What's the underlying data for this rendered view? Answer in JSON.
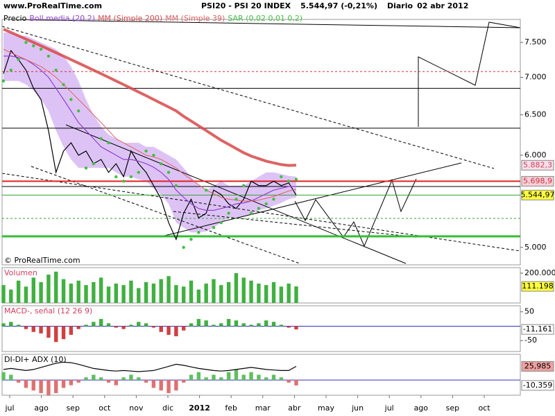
{
  "header": {
    "site": "www.ProRealTime.com",
    "title": "PSI20 - PSI 20 INDEX",
    "quote": "5.544,97 (-0,21%)",
    "period": "Diario",
    "date": "02 abr 2012"
  },
  "footer": {
    "copyright": "© ProRealTime.com"
  },
  "time_axis": {
    "labels": [
      "jul",
      "ago",
      "sep",
      "oct",
      "nov",
      "dic",
      "2012",
      "feb",
      "mar",
      "abr",
      "may",
      "jun",
      "jul",
      "ago",
      "sep",
      "oct"
    ]
  },
  "chart_data": [
    {
      "type": "line",
      "log_scale": true,
      "ylim": [
        4830,
        7850
      ],
      "yticks": [
        {
          "value": 7500,
          "label": "7.500"
        },
        {
          "value": 7000,
          "label": "7.000"
        },
        {
          "value": 6500,
          "label": "6.500"
        },
        {
          "value": 6000,
          "label": "6.000"
        },
        {
          "value": 5000,
          "label": "5.000"
        }
      ],
      "levels": [
        {
          "value": 7080,
          "color": "#d03030",
          "dash": true,
          "width": 1
        },
        {
          "value": 6850,
          "color": "#000000",
          "width": 1
        },
        {
          "value": 6330,
          "color": "#000000",
          "width": 1
        },
        {
          "value": 5640,
          "color": "#000000",
          "width": 1
        },
        {
          "value": 5698.9,
          "color": "#e02020",
          "width": 2,
          "value_label": "5.698,9",
          "label_bg": "#f8d0d8",
          "label_color": "#d03040"
        },
        {
          "value": 5544.97,
          "color": "#30a030",
          "width": 1,
          "value_label": "5.544,97",
          "label_bg": "#ffff40",
          "label_color": "#000000"
        },
        {
          "value": 5295,
          "color": "#30a030",
          "dash": true,
          "width": 1
        },
        {
          "value": 5110,
          "color": "#30c030",
          "width": 3
        }
      ],
      "series": [
        {
          "name": "Precio",
          "color": "#000000",
          "style": "line",
          "values": [
            7050,
            7380,
            7250,
            7100,
            6850,
            6700,
            6300,
            5800,
            6050,
            6150,
            6000,
            6050,
            5900,
            5950,
            5800,
            5900,
            5750,
            6050,
            5900,
            5800,
            5650,
            5500,
            5250,
            5080,
            5350,
            5500,
            5300,
            5350,
            5600,
            5550,
            5450,
            5400,
            5500,
            5700,
            5650,
            5650,
            5700,
            5650,
            5680,
            5544.97
          ]
        },
        {
          "name": "Boll media (20 2)",
          "color": "#9040d0",
          "style": "band",
          "band_color": "#d4b4f2",
          "values": [
            7300,
            7300,
            7280,
            7250,
            7180,
            7100,
            7000,
            6850,
            6700,
            6550,
            6400,
            6300,
            6200,
            6100,
            6050,
            6000,
            5950,
            5950,
            5930,
            5900,
            5860,
            5800,
            5720,
            5600,
            5520,
            5450,
            5400,
            5380,
            5380,
            5400,
            5420,
            5450,
            5460,
            5480,
            5520,
            5560,
            5600,
            5620,
            5640,
            5640
          ],
          "upper": [
            7650,
            7650,
            7600,
            7600,
            7550,
            7500,
            7450,
            7400,
            7300,
            7150,
            6950,
            6700,
            6500,
            6350,
            6250,
            6200,
            6150,
            6150,
            6150,
            6100,
            6100,
            6050,
            6000,
            5950,
            5850,
            5750,
            5650,
            5600,
            5650,
            5700,
            5650,
            5650,
            5650,
            5700,
            5750,
            5800,
            5800,
            5780,
            5760,
            5750
          ],
          "lower": [
            6950,
            6950,
            6950,
            6900,
            6820,
            6700,
            6550,
            6300,
            6100,
            5950,
            5850,
            5850,
            5850,
            5850,
            5850,
            5800,
            5750,
            5750,
            5720,
            5700,
            5620,
            5550,
            5450,
            5250,
            5200,
            5150,
            5150,
            5160,
            5200,
            5250,
            5300,
            5300,
            5320,
            5340,
            5380,
            5400,
            5430,
            5460,
            5500,
            5520
          ]
        },
        {
          "name": "MM (Simple 200)",
          "color": "#d84848",
          "style": "line",
          "width": 4,
          "values": [
            7700,
            7650,
            7600,
            7550,
            7500,
            7450,
            7400,
            7350,
            7300,
            7250,
            7200,
            7150,
            7100,
            7050,
            7000,
            6950,
            6900,
            6850,
            6800,
            6750,
            6700,
            6650,
            6600,
            6550,
            6480,
            6420,
            6360,
            6300,
            6240,
            6180,
            6130,
            6080,
            6030,
            5990,
            5960,
            5930,
            5910,
            5890,
            5880,
            5882.3
          ],
          "value_labels": [
            null,
            null,
            null,
            null,
            null,
            null,
            null,
            null,
            null,
            null,
            null,
            null,
            null,
            null,
            null,
            null,
            null,
            null,
            null,
            null,
            null,
            null,
            null,
            null,
            null,
            null,
            null,
            null,
            null,
            null,
            null,
            null,
            null,
            null,
            null,
            null,
            null,
            null,
            null,
            "5.882,3"
          ],
          "label_bg": "#f8e0e8",
          "label_color": "#d04060"
        },
        {
          "name": "MM (Simple 39)",
          "color": "#e06060",
          "style": "line",
          "width": 1,
          "values": [
            7400,
            7350,
            7300,
            7250,
            7200,
            7150,
            7080,
            7000,
            6900,
            6800,
            6700,
            6600,
            6500,
            6400,
            6300,
            6200,
            6150,
            6100,
            6050,
            6000,
            5980,
            5950,
            5900,
            5850,
            5780,
            5720,
            5660,
            5600,
            5560,
            5520,
            5500,
            5490,
            5480,
            5480,
            5490,
            5510,
            5530,
            5560,
            5590,
            5610
          ]
        },
        {
          "name": "SAR (0,02 0,01 0,2)",
          "color": "#40c040",
          "style": "dots",
          "values": [
            6950,
            7100,
            7250,
            7500,
            7450,
            7400,
            7300,
            7100,
            6900,
            6700,
            6550,
            5850,
            5900,
            6200,
            6150,
            5750,
            5700,
            5750,
            5800,
            6050,
            6000,
            5900,
            5800,
            5650,
            5000,
            5080,
            5150,
            5600,
            5200,
            5250,
            5350,
            5500,
            5650,
            5350,
            5400,
            5450,
            5500,
            5750,
            5700,
            5720
          ]
        }
      ]
    },
    {
      "type": "bar",
      "title": "Volumen",
      "title_color": "#d04060",
      "ylim": [
        0,
        237000
      ],
      "yticks": [
        {
          "value": 200000,
          "label": "200.000"
        }
      ],
      "series": [
        {
          "name": "Volumen",
          "color": "#40b040",
          "values": [
            120000,
            90000,
            150000,
            110000,
            170000,
            140000,
            190000,
            210000,
            160000,
            130000,
            150000,
            120000,
            140000,
            170000,
            110000,
            130000,
            120000,
            150000,
            100000,
            140000,
            130000,
            160000,
            180000,
            120000,
            110000,
            150000,
            90000,
            130000,
            160000,
            120000,
            140000,
            200000,
            170000,
            150000,
            130000,
            120000,
            140000,
            110000,
            130000,
            111198
          ],
          "value_labels": [
            null,
            null,
            null,
            null,
            null,
            null,
            null,
            null,
            null,
            null,
            null,
            null,
            null,
            null,
            null,
            null,
            null,
            null,
            null,
            null,
            null,
            null,
            null,
            null,
            null,
            null,
            null,
            null,
            null,
            null,
            null,
            null,
            null,
            null,
            null,
            null,
            null,
            null,
            null,
            "111.198"
          ],
          "label_bg": "#ffff40",
          "label_color": "#000000"
        }
      ]
    },
    {
      "type": "bar",
      "title": "MACD-, señal (12 26 9)",
      "title_color": "#d04060",
      "ylim": [
        -88,
        71
      ],
      "yticks": [
        50,
        -50
      ],
      "zero_line": "#3030c0",
      "series": [
        {
          "name": "MACD",
          "color": "#40b040",
          "negative_color": "#d04040",
          "values": [
            10,
            15,
            5,
            -10,
            -20,
            -25,
            -40,
            -55,
            -45,
            -30,
            -10,
            5,
            15,
            25,
            10,
            -5,
            -10,
            5,
            15,
            10,
            -5,
            -20,
            -30,
            -35,
            -15,
            10,
            25,
            20,
            5,
            10,
            25,
            20,
            10,
            5,
            10,
            20,
            15,
            5,
            -5,
            -11.161
          ],
          "value_labels": [
            null,
            null,
            null,
            null,
            null,
            null,
            null,
            null,
            null,
            null,
            null,
            null,
            null,
            null,
            null,
            null,
            null,
            null,
            null,
            null,
            null,
            null,
            null,
            null,
            null,
            null,
            null,
            null,
            null,
            null,
            null,
            null,
            null,
            null,
            null,
            null,
            null,
            null,
            null,
            "-11,161"
          ],
          "label_bg": "#ffffff",
          "label_color": "#000000"
        }
      ]
    },
    {
      "type": "bar",
      "title": "DI-DI+ ADX (10)",
      "title_color": "#000000",
      "ylim": [
        -29,
        49
      ],
      "yticks": [],
      "zero_line": "#3030c0",
      "series": [
        {
          "name": "DI",
          "color": "#60c060",
          "negative_color": "#e07070",
          "values": [
            15,
            10,
            -5,
            -15,
            -20,
            -25,
            -30,
            -25,
            -15,
            -10,
            -5,
            5,
            10,
            5,
            -5,
            -10,
            5,
            10,
            5,
            -5,
            -15,
            -20,
            -25,
            -20,
            -5,
            10,
            15,
            5,
            10,
            5,
            15,
            20,
            10,
            15,
            10,
            5,
            10,
            5,
            -5,
            -10.359
          ],
          "value_labels": [
            null,
            null,
            null,
            null,
            null,
            null,
            null,
            null,
            null,
            null,
            null,
            null,
            null,
            null,
            null,
            null,
            null,
            null,
            null,
            null,
            null,
            null,
            null,
            null,
            null,
            null,
            null,
            null,
            null,
            null,
            null,
            null,
            null,
            null,
            null,
            null,
            null,
            null,
            null,
            "-10,359"
          ],
          "label_bg": "#ffffff",
          "label_color": "#000000"
        },
        {
          "name": "ADX",
          "color": "#000000",
          "style": "line",
          "values": [
            20,
            22,
            20,
            18,
            20,
            24,
            28,
            32,
            34,
            33,
            30,
            26,
            22,
            20,
            18,
            17,
            18,
            17,
            16,
            17,
            18,
            22,
            26,
            30,
            28,
            25,
            22,
            20,
            18,
            17,
            18,
            20,
            22,
            24,
            22,
            20,
            19,
            18,
            18,
            25.985
          ],
          "value_labels": [
            null,
            null,
            null,
            null,
            null,
            null,
            null,
            null,
            null,
            null,
            null,
            null,
            null,
            null,
            null,
            null,
            null,
            null,
            null,
            null,
            null,
            null,
            null,
            null,
            null,
            null,
            null,
            null,
            null,
            null,
            null,
            null,
            null,
            null,
            null,
            null,
            null,
            null,
            null,
            "25,985"
          ],
          "label_bg": "#f0a0a0",
          "label_color": "#000000"
        }
      ]
    }
  ]
}
